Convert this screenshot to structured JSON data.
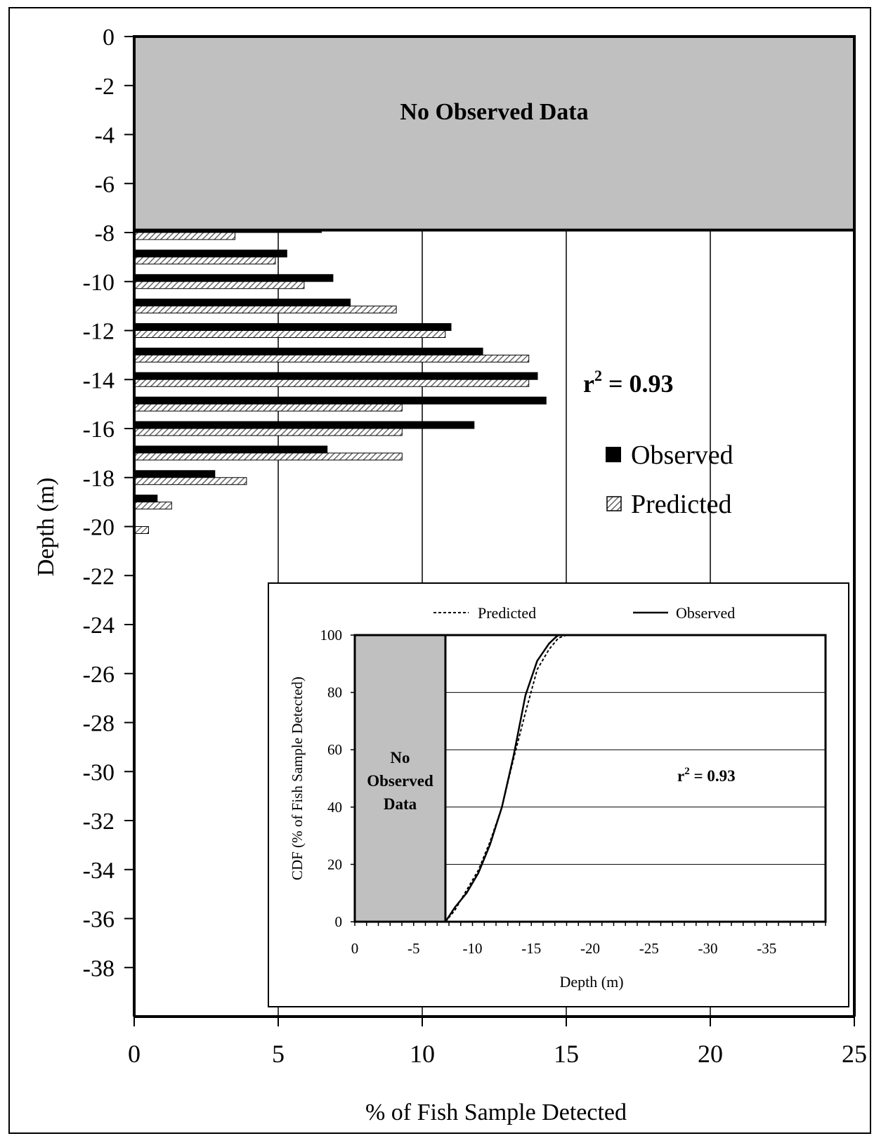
{
  "chart_data": [
    {
      "type": "bar",
      "orientation": "horizontal",
      "xlabel": "% of Fish Sample Detected",
      "ylabel": "Depth (m)",
      "xlim": [
        0,
        25
      ],
      "ylim": [
        -40,
        0
      ],
      "x_ticks": [
        "0",
        "5",
        "10",
        "15",
        "20",
        "25"
      ],
      "y_ticks": [
        "0",
        "-2",
        "-4",
        "-6",
        "-8",
        "-10",
        "-12",
        "-14",
        "-16",
        "-18",
        "-20",
        "-22",
        "-24",
        "-26",
        "-28",
        "-30",
        "-32",
        "-34",
        "-36",
        "-38"
      ],
      "categories": [
        -8,
        -9,
        -10,
        -11,
        -12,
        -13,
        -14,
        -15,
        -16,
        -17,
        -18,
        -19,
        -20
      ],
      "series": [
        {
          "name": "Observed",
          "color": "#000000",
          "values": [
            6.5,
            5.3,
            6.9,
            7.5,
            11.0,
            12.1,
            14.0,
            14.3,
            11.8,
            6.7,
            2.8,
            0.8,
            0
          ]
        },
        {
          "name": "Predicted",
          "color": "#aaaaaa",
          "values": [
            3.5,
            4.9,
            5.9,
            9.1,
            10.8,
            13.7,
            13.7,
            9.3,
            9.3,
            9.3,
            3.9,
            1.3,
            0.5
          ]
        }
      ],
      "no_data_region": {
        "label": "No Observed Data",
        "from": 0,
        "to": -7.9,
        "color": "#c0c0c0"
      },
      "annotation": {
        "base": "r",
        "sup": "2",
        "rest": " = 0.93"
      },
      "grid": "vertical",
      "legend": "right"
    },
    {
      "type": "line",
      "xlabel": "Depth (m)",
      "ylabel": "CDF (% of Fish Sample Detected)",
      "xlim": [
        0,
        -40
      ],
      "ylim": [
        0,
        100
      ],
      "x_ticks": [
        "0",
        "-5",
        "-10",
        "-15",
        "-20",
        "-25",
        "-30",
        "-35"
      ],
      "y_ticks": [
        "0",
        "20",
        "40",
        "60",
        "80",
        "100"
      ],
      "no_data_region": {
        "line1": "No",
        "line2": "Observed",
        "line3": "Data",
        "from": 0,
        "to": -7.7
      },
      "annotation": {
        "base": "r",
        "sup": "2",
        "rest": " = 0.93"
      },
      "grid": "horizontal",
      "legend": "top",
      "series": [
        {
          "name": "Predicted",
          "style": "dashed",
          "x": [
            -7.7,
            -8.5,
            -9.5,
            -10.5,
            -11.5,
            -12.5,
            -13.5,
            -14.5,
            -15.5,
            -16.5,
            -17.3,
            -18.0
          ],
          "y": [
            0,
            4,
            11,
            18,
            28,
            40,
            57,
            73,
            88,
            95,
            99,
            100
          ]
        },
        {
          "name": "Observed",
          "style": "solid",
          "x": [
            -7.7,
            -8.5,
            -9.5,
            -10.5,
            -11.5,
            -12.5,
            -13.5,
            -14.5,
            -15.5,
            -16.5,
            -17.0,
            -17.3
          ],
          "y": [
            0,
            5,
            10,
            17,
            27,
            40,
            58,
            79,
            91,
            97,
            99,
            100
          ]
        }
      ]
    }
  ]
}
